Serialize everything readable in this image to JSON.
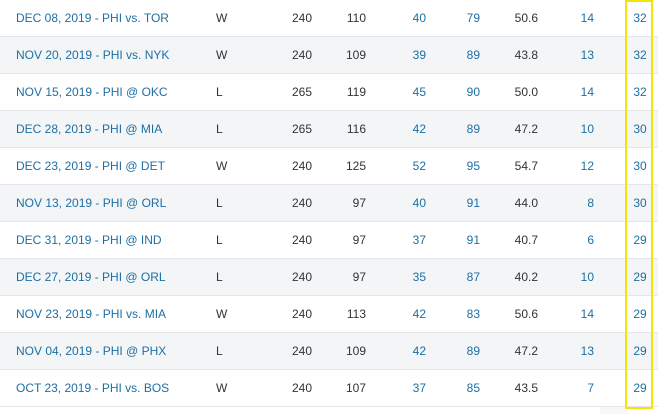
{
  "rows": [
    {
      "matchup": "DEC 08, 2019 - PHI vs. TOR",
      "wl": "W",
      "min": "240",
      "pts": "110",
      "fgm": "40",
      "fga": "79",
      "fgp": "50.6",
      "c3pm": "14",
      "c3pa": "32"
    },
    {
      "matchup": "NOV 20, 2019 - PHI vs. NYK",
      "wl": "W",
      "min": "240",
      "pts": "109",
      "fgm": "39",
      "fga": "89",
      "fgp": "43.8",
      "c3pm": "13",
      "c3pa": "32"
    },
    {
      "matchup": "NOV 15, 2019 - PHI @ OKC",
      "wl": "L",
      "min": "265",
      "pts": "119",
      "fgm": "45",
      "fga": "90",
      "fgp": "50.0",
      "c3pm": "14",
      "c3pa": "32"
    },
    {
      "matchup": "DEC 28, 2019 - PHI @ MIA",
      "wl": "L",
      "min": "265",
      "pts": "116",
      "fgm": "42",
      "fga": "89",
      "fgp": "47.2",
      "c3pm": "10",
      "c3pa": "30"
    },
    {
      "matchup": "DEC 23, 2019 - PHI @ DET",
      "wl": "W",
      "min": "240",
      "pts": "125",
      "fgm": "52",
      "fga": "95",
      "fgp": "54.7",
      "c3pm": "12",
      "c3pa": "30"
    },
    {
      "matchup": "NOV 13, 2019 - PHI @ ORL",
      "wl": "L",
      "min": "240",
      "pts": "97",
      "fgm": "40",
      "fga": "91",
      "fgp": "44.0",
      "c3pm": "8",
      "c3pa": "30"
    },
    {
      "matchup": "DEC 31, 2019 - PHI @ IND",
      "wl": "L",
      "min": "240",
      "pts": "97",
      "fgm": "37",
      "fga": "91",
      "fgp": "40.7",
      "c3pm": "6",
      "c3pa": "29"
    },
    {
      "matchup": "DEC 27, 2019 - PHI @ ORL",
      "wl": "L",
      "min": "240",
      "pts": "97",
      "fgm": "35",
      "fga": "87",
      "fgp": "40.2",
      "c3pm": "10",
      "c3pa": "29"
    },
    {
      "matchup": "NOV 23, 2019 - PHI vs. MIA",
      "wl": "W",
      "min": "240",
      "pts": "113",
      "fgm": "42",
      "fga": "83",
      "fgp": "50.6",
      "c3pm": "14",
      "c3pa": "29"
    },
    {
      "matchup": "NOV 04, 2019 - PHI @ PHX",
      "wl": "L",
      "min": "240",
      "pts": "109",
      "fgm": "42",
      "fga": "89",
      "fgp": "47.2",
      "c3pm": "13",
      "c3pa": "29"
    },
    {
      "matchup": "OCT 23, 2019 - PHI vs. BOS",
      "wl": "W",
      "min": "240",
      "pts": "107",
      "fgm": "37",
      "fga": "85",
      "fgp": "43.5",
      "c3pm": "7",
      "c3pa": "29"
    }
  ],
  "colors": {
    "link": "#1d6fa3",
    "highlight": "#f2e600",
    "row_alt": "#f3f5f7"
  }
}
